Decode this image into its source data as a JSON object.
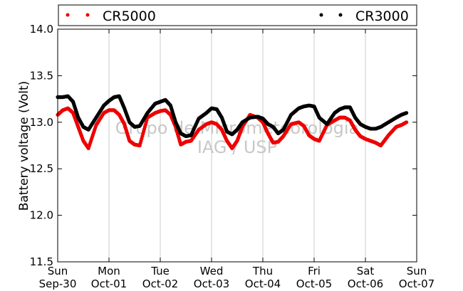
{
  "chart_data": {
    "type": "scatter",
    "ylabel": "Battery voltage (Volt)",
    "watermark_line1": "Grupo de Micrometeorologia",
    "watermark_line2": "IAG / USP",
    "ylim": [
      11.5,
      14.0
    ],
    "yticks": [
      "11.5",
      "12.0",
      "12.5",
      "13.0",
      "13.5",
      "14.0"
    ],
    "ytick_values": [
      11.5,
      12.0,
      12.5,
      13.0,
      13.5,
      14.0
    ],
    "xlim_days": [
      0,
      7
    ],
    "xticks": [
      {
        "day": "Sun",
        "date": "Sep-30"
      },
      {
        "day": "Mon",
        "date": "Oct-01"
      },
      {
        "day": "Tue",
        "date": "Oct-02"
      },
      {
        "day": "Wed",
        "date": "Oct-03"
      },
      {
        "day": "Thu",
        "date": "Oct-04"
      },
      {
        "day": "Fri",
        "date": "Oct-05"
      },
      {
        "day": "Sat",
        "date": "Oct-06"
      },
      {
        "day": "Sun",
        "date": "Oct-07"
      }
    ],
    "grid": "vertical",
    "legend_position": "top",
    "series": [
      {
        "name": "CR5000",
        "color": "#ee0000",
        "points": [
          [
            0.0,
            13.08
          ],
          [
            0.1,
            13.13
          ],
          [
            0.2,
            13.15
          ],
          [
            0.3,
            13.1
          ],
          [
            0.4,
            12.95
          ],
          [
            0.5,
            12.8
          ],
          [
            0.6,
            12.72
          ],
          [
            0.75,
            12.97
          ],
          [
            0.9,
            13.1
          ],
          [
            1.0,
            13.13
          ],
          [
            1.1,
            13.13
          ],
          [
            1.2,
            13.08
          ],
          [
            1.3,
            12.98
          ],
          [
            1.4,
            12.8
          ],
          [
            1.5,
            12.76
          ],
          [
            1.6,
            12.75
          ],
          [
            1.75,
            13.05
          ],
          [
            1.9,
            13.1
          ],
          [
            2.0,
            13.12
          ],
          [
            2.1,
            13.13
          ],
          [
            2.2,
            13.08
          ],
          [
            2.3,
            12.95
          ],
          [
            2.4,
            12.76
          ],
          [
            2.5,
            12.79
          ],
          [
            2.6,
            12.8
          ],
          [
            2.75,
            12.92
          ],
          [
            2.9,
            12.98
          ],
          [
            3.0,
            13.0
          ],
          [
            3.1,
            12.98
          ],
          [
            3.2,
            12.92
          ],
          [
            3.3,
            12.8
          ],
          [
            3.4,
            12.72
          ],
          [
            3.5,
            12.8
          ],
          [
            3.6,
            12.95
          ],
          [
            3.75,
            13.08
          ],
          [
            3.9,
            13.05
          ],
          [
            4.0,
            13.0
          ],
          [
            4.1,
            12.88
          ],
          [
            4.2,
            12.78
          ],
          [
            4.3,
            12.79
          ],
          [
            4.4,
            12.85
          ],
          [
            4.55,
            12.98
          ],
          [
            4.7,
            13.0
          ],
          [
            4.8,
            12.96
          ],
          [
            4.9,
            12.86
          ],
          [
            5.0,
            12.82
          ],
          [
            5.1,
            12.8
          ],
          [
            5.25,
            12.97
          ],
          [
            5.4,
            13.02
          ],
          [
            5.5,
            13.05
          ],
          [
            5.6,
            13.05
          ],
          [
            5.7,
            13.02
          ],
          [
            5.8,
            12.92
          ],
          [
            5.9,
            12.85
          ],
          [
            6.0,
            12.82
          ],
          [
            6.1,
            12.8
          ],
          [
            6.2,
            12.78
          ],
          [
            6.3,
            12.75
          ],
          [
            6.45,
            12.86
          ],
          [
            6.6,
            12.95
          ],
          [
            6.7,
            12.97
          ],
          [
            6.8,
            13.0
          ]
        ]
      },
      {
        "name": "CR3000",
        "color": "#000000",
        "points": [
          [
            0.0,
            13.27
          ],
          [
            0.1,
            13.27
          ],
          [
            0.2,
            13.28
          ],
          [
            0.3,
            13.22
          ],
          [
            0.4,
            13.05
          ],
          [
            0.5,
            12.95
          ],
          [
            0.6,
            12.92
          ],
          [
            0.75,
            13.05
          ],
          [
            0.9,
            13.18
          ],
          [
            1.0,
            13.23
          ],
          [
            1.1,
            13.27
          ],
          [
            1.2,
            13.28
          ],
          [
            1.3,
            13.15
          ],
          [
            1.4,
            13.0
          ],
          [
            1.5,
            12.95
          ],
          [
            1.6,
            12.96
          ],
          [
            1.75,
            13.1
          ],
          [
            1.9,
            13.2
          ],
          [
            2.0,
            13.22
          ],
          [
            2.1,
            13.24
          ],
          [
            2.2,
            13.18
          ],
          [
            2.3,
            13.0
          ],
          [
            2.4,
            12.88
          ],
          [
            2.5,
            12.85
          ],
          [
            2.6,
            12.86
          ],
          [
            2.75,
            13.04
          ],
          [
            2.9,
            13.1
          ],
          [
            3.0,
            13.15
          ],
          [
            3.1,
            13.14
          ],
          [
            3.2,
            13.05
          ],
          [
            3.3,
            12.9
          ],
          [
            3.4,
            12.87
          ],
          [
            3.5,
            12.92
          ],
          [
            3.6,
            13.0
          ],
          [
            3.75,
            13.05
          ],
          [
            3.9,
            13.06
          ],
          [
            4.0,
            13.04
          ],
          [
            4.1,
            12.98
          ],
          [
            4.2,
            12.95
          ],
          [
            4.3,
            12.88
          ],
          [
            4.4,
            12.92
          ],
          [
            4.55,
            13.08
          ],
          [
            4.7,
            13.15
          ],
          [
            4.8,
            13.17
          ],
          [
            4.9,
            13.18
          ],
          [
            5.0,
            13.17
          ],
          [
            5.1,
            13.05
          ],
          [
            5.25,
            12.98
          ],
          [
            5.4,
            13.1
          ],
          [
            5.5,
            13.14
          ],
          [
            5.6,
            13.16
          ],
          [
            5.7,
            13.16
          ],
          [
            5.8,
            13.05
          ],
          [
            5.9,
            12.98
          ],
          [
            6.0,
            12.95
          ],
          [
            6.1,
            12.93
          ],
          [
            6.2,
            12.93
          ],
          [
            6.3,
            12.95
          ],
          [
            6.45,
            13.0
          ],
          [
            6.6,
            13.05
          ],
          [
            6.7,
            13.08
          ],
          [
            6.8,
            13.1
          ]
        ]
      }
    ]
  }
}
